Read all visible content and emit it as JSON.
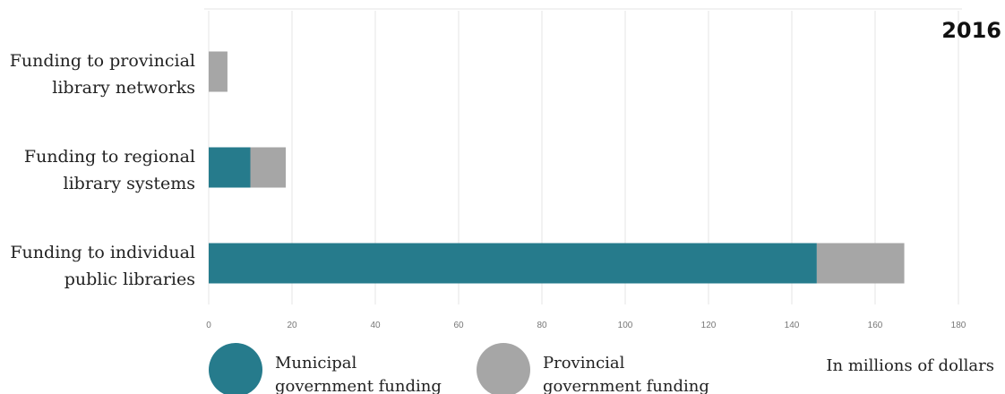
{
  "chart_data": {
    "type": "bar",
    "orientation": "horizontal",
    "stacked": true,
    "year": "2016",
    "unit_note": "In millions of dollars",
    "categories": [
      [
        "Funding to provincial",
        "library networks"
      ],
      [
        "Funding to regional",
        "library systems"
      ],
      [
        "Funding to individual",
        "public libraries"
      ]
    ],
    "series": [
      {
        "name": [
          "Municipal",
          "government funding"
        ],
        "color": "#267b8c",
        "values": [
          0,
          10,
          146
        ]
      },
      {
        "name": [
          "Provincial",
          "government funding"
        ],
        "color": "#a6a6a6",
        "values": [
          4.5,
          8.5,
          21
        ]
      }
    ],
    "xlim": [
      0,
      180
    ],
    "xticks": [
      0,
      20,
      40,
      60,
      80,
      100,
      120,
      140,
      160,
      180
    ],
    "grid": true,
    "legend_position": "bottom"
  }
}
